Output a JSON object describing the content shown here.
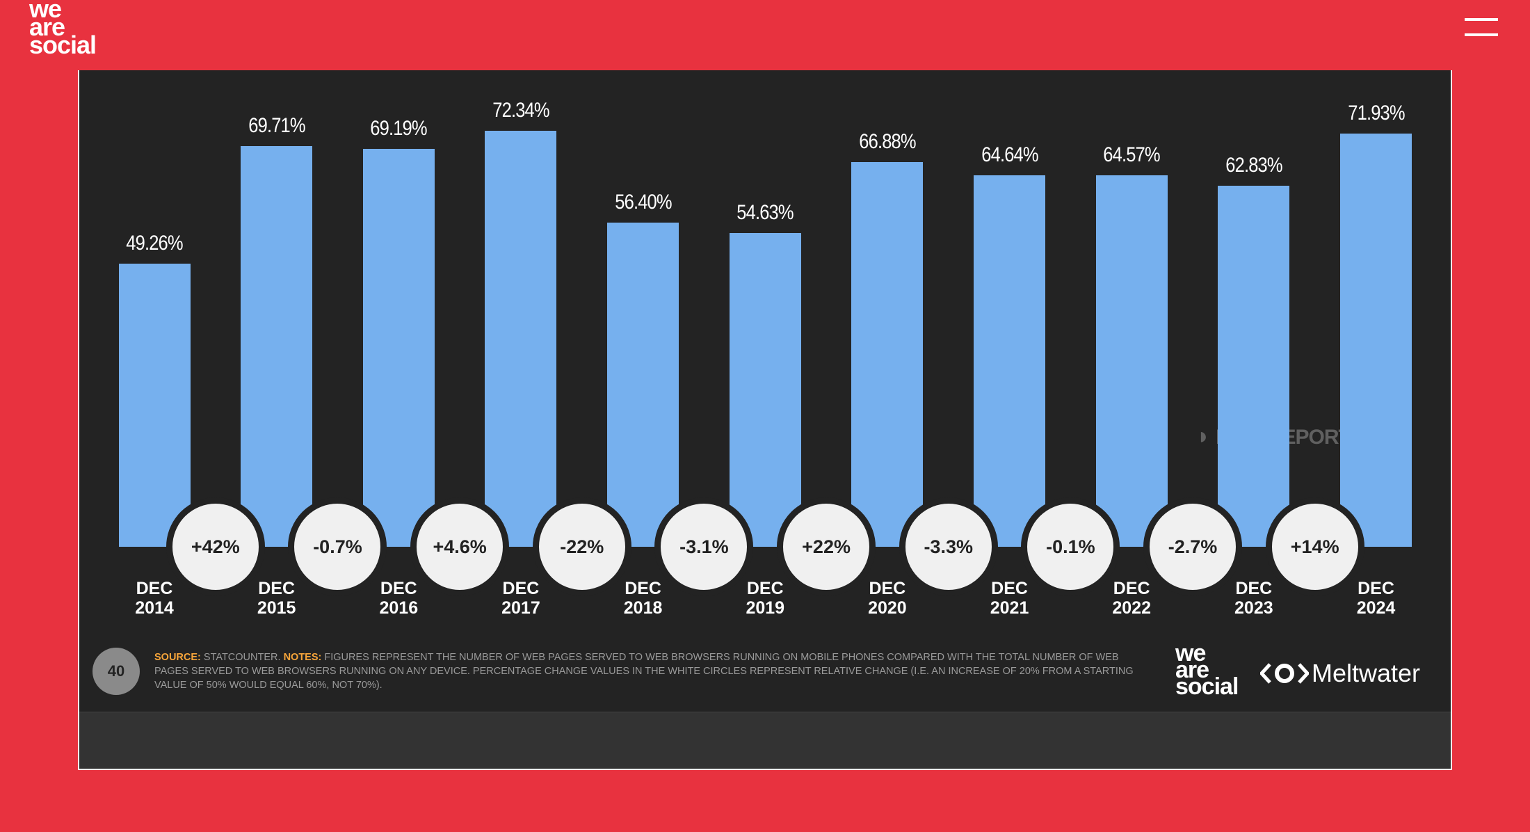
{
  "header": {
    "logo_lines": [
      "we",
      "are",
      "social"
    ]
  },
  "chart_data": {
    "type": "bar",
    "categories": [
      "DEC 2014",
      "DEC 2015",
      "DEC 2016",
      "DEC 2017",
      "DEC 2018",
      "DEC 2019",
      "DEC 2020",
      "DEC 2021",
      "DEC 2022",
      "DEC 2023",
      "DEC 2024"
    ],
    "values": [
      49.26,
      69.71,
      69.19,
      72.34,
      56.4,
      54.63,
      66.88,
      64.64,
      64.57,
      62.83,
      71.93
    ],
    "value_labels": [
      "49.26%",
      "69.71%",
      "69.19%",
      "72.34%",
      "56.40%",
      "54.63%",
      "66.88%",
      "64.64%",
      "64.57%",
      "62.83%",
      "71.93%"
    ],
    "change_labels": [
      "+42%",
      "-0.7%",
      "+4.6%",
      "-22%",
      "-3.1%",
      "+22%",
      "-3.3%",
      "-0.1%",
      "-2.7%",
      "+14%"
    ],
    "color": "#76b0ee",
    "ylim": [
      0,
      80
    ],
    "watermark": "DATAREPORTAL"
  },
  "footer": {
    "page_number": "40",
    "source_label": "SOURCE:",
    "source": "STATCOUNTER.",
    "notes_label": "NOTES:",
    "notes": "FIGURES REPRESENT THE NUMBER OF WEB PAGES SERVED TO WEB BROWSERS RUNNING ON MOBILE PHONES COMPARED WITH THE TOTAL NUMBER OF WEB PAGES SERVED TO WEB BROWSERS RUNNING ON ANY DEVICE. PERCENTAGE CHANGE VALUES IN THE WHITE CIRCLES REPRESENT RELATIVE CHANGE (I.E. AN INCREASE OF 20% FROM A STARTING VALUE OF 50% WOULD EQUAL 60%, NOT 70%).",
    "logo_lines": [
      "we",
      "are",
      "social"
    ],
    "partner": "Meltwater"
  }
}
